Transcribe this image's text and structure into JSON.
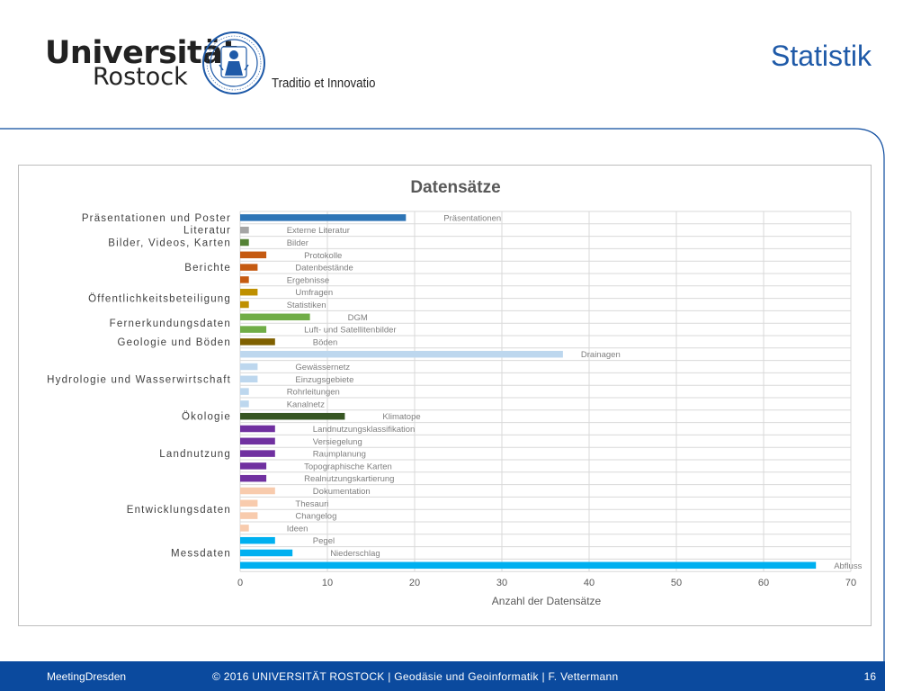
{
  "header": {
    "university": "Universität",
    "city": "Rostock",
    "motto": "Traditio et Innovatio",
    "slide_title": "Statistik"
  },
  "footer": {
    "left": "MeetingDresden",
    "center": "© 2016  UNIVERSITÄT ROSTOCK  |  Geodäsie und Geoinformatik | F. Vettermann",
    "page": "16"
  },
  "colors": {
    "brand_blue": "#0b4a9e",
    "title_blue": "#1f5aa8"
  },
  "chart_data": {
    "type": "bar",
    "orientation": "horizontal",
    "title": "Datensätze",
    "xlabel": "Anzahl der Datensätze",
    "ylabel": "",
    "xlim": [
      0,
      70
    ],
    "xticks": [
      0,
      10,
      20,
      30,
      40,
      50,
      60,
      70
    ],
    "grid": true,
    "bars": [
      {
        "label": "Präsentationen",
        "value": 19,
        "color": "#2e75b6"
      },
      {
        "label": "Externe Literatur",
        "value": 1,
        "color": "#a5a5a5"
      },
      {
        "label": "Bilder",
        "value": 1,
        "color": "#548235"
      },
      {
        "label": "Protokolle",
        "value": 3,
        "color": "#c55a11"
      },
      {
        "label": "Datenbestände",
        "value": 2,
        "color": "#c55a11"
      },
      {
        "label": "Ergebnisse",
        "value": 1,
        "color": "#c55a11"
      },
      {
        "label": "Umfragen",
        "value": 2,
        "color": "#bf9000"
      },
      {
        "label": "Statistiken",
        "value": 1,
        "color": "#bf9000"
      },
      {
        "label": "DGM",
        "value": 8,
        "color": "#70ad47"
      },
      {
        "label": "Luft- und Satellitenbilder",
        "value": 3,
        "color": "#70ad47"
      },
      {
        "label": "Böden",
        "value": 4,
        "color": "#7f6000"
      },
      {
        "label": "Drainagen",
        "value": 37,
        "color": "#bdd7ee"
      },
      {
        "label": "Gewässernetz",
        "value": 2,
        "color": "#bdd7ee"
      },
      {
        "label": "Einzugsgebiete",
        "value": 2,
        "color": "#bdd7ee"
      },
      {
        "label": "Rohrleitungen",
        "value": 1,
        "color": "#bdd7ee"
      },
      {
        "label": "Kanalnetz",
        "value": 1,
        "color": "#bdd7ee"
      },
      {
        "label": "Klimatope",
        "value": 12,
        "color": "#375623"
      },
      {
        "label": "Landnutzungsklassifikation",
        "value": 4,
        "color": "#7030a0"
      },
      {
        "label": "Versiegelung",
        "value": 4,
        "color": "#7030a0"
      },
      {
        "label": "Raumplanung",
        "value": 4,
        "color": "#7030a0"
      },
      {
        "label": "Topographische Karten",
        "value": 3,
        "color": "#7030a0"
      },
      {
        "label": "Realnutzungskartierung",
        "value": 3,
        "color": "#7030a0"
      },
      {
        "label": "Dokumentation",
        "value": 4,
        "color": "#f8cbad"
      },
      {
        "label": "Thesauri",
        "value": 2,
        "color": "#f8cbad"
      },
      {
        "label": "Changelog",
        "value": 2,
        "color": "#f8cbad"
      },
      {
        "label": "Ideen",
        "value": 1,
        "color": "#f8cbad"
      },
      {
        "label": "Pegel",
        "value": 4,
        "color": "#00b0f0"
      },
      {
        "label": "Niederschlag",
        "value": 6,
        "color": "#00b0f0"
      },
      {
        "label": "Abfluss",
        "value": 66,
        "color": "#00b0f0"
      }
    ],
    "groups": [
      {
        "label": "Präsentationen und Poster",
        "first": 0,
        "last": 0
      },
      {
        "label": "Literatur",
        "first": 1,
        "last": 1
      },
      {
        "label": "Bilder, Videos, Karten",
        "first": 2,
        "last": 2
      },
      {
        "label": "Berichte",
        "first": 3,
        "last": 5
      },
      {
        "label": "Öffentlichkeitsbeteiligung",
        "first": 6,
        "last": 7
      },
      {
        "label": "Fernerkundungsdaten",
        "first": 8,
        "last": 9
      },
      {
        "label": "Geologie und Böden",
        "first": 10,
        "last": 10
      },
      {
        "label": "Hydrologie und Wasserwirtschaft",
        "first": 11,
        "last": 15
      },
      {
        "label": "Ökologie",
        "first": 16,
        "last": 16
      },
      {
        "label": "Landnutzung",
        "first": 17,
        "last": 21
      },
      {
        "label": "Entwicklungsdaten",
        "first": 22,
        "last": 25
      },
      {
        "label": "Messdaten",
        "first": 26,
        "last": 28
      }
    ]
  }
}
